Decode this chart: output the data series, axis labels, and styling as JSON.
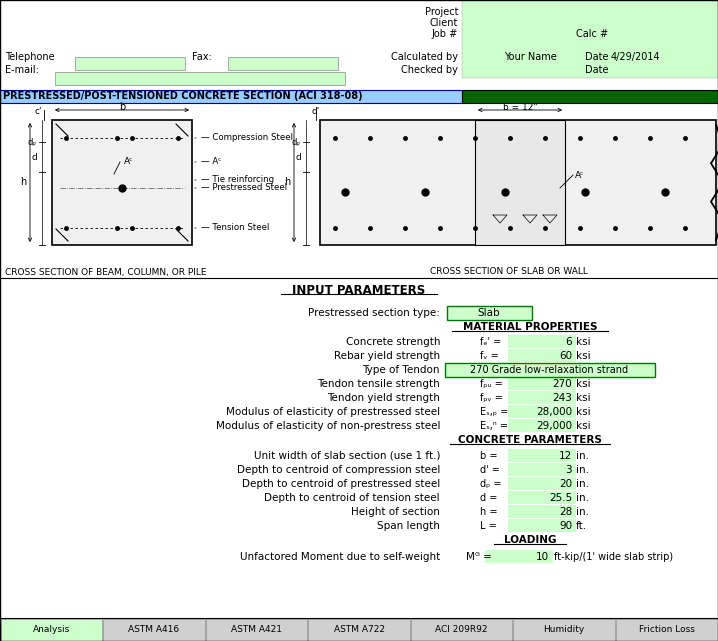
{
  "bg_color": "#ffffff",
  "light_green": "#ccffcc",
  "dark_green": "#006600",
  "header_blue": "#99ccff",
  "title_text": "PRESTRESSED/POST-TENSIONED CONCRETE SECTION (ACI 318-08)",
  "tab_labels": [
    "Analysis",
    "ASTM A416",
    "ASTM A421",
    "ASTM A722",
    "ACI 209R92",
    "Humidity",
    "Friction Loss"
  ]
}
